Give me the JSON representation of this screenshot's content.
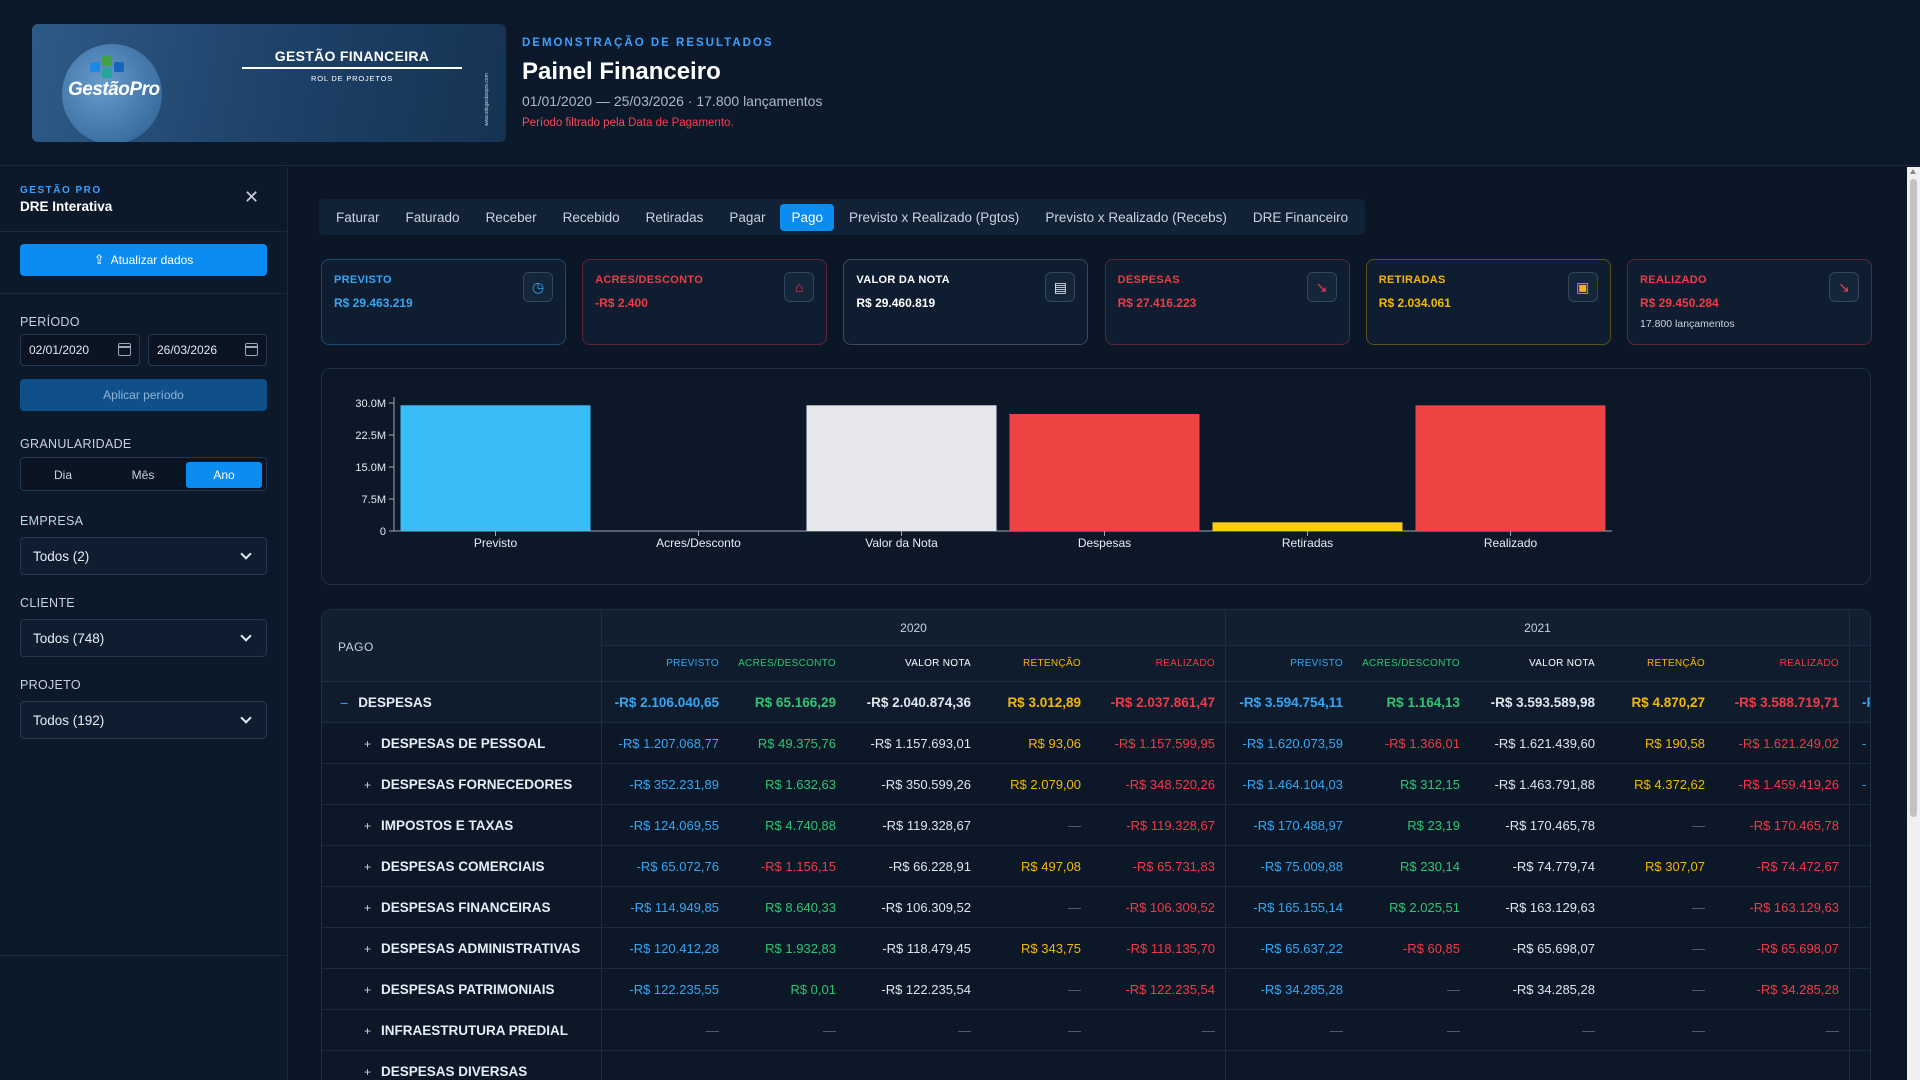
{
  "header": {
    "banner_logo": "GestãoPro",
    "banner_title": "GESTÃO FINANCEIRA",
    "banner_sub": "ROL DE PROJETOS",
    "banner_side": "www.sitegestaopro.com",
    "kicker": "DEMONSTRAÇÃO DE RESULTADOS",
    "title": "Painel Financeiro",
    "range": "01/01/2020 — 25/03/2026 · 17.800 lançamentos",
    "note_prefix": "Período filtrado pela ",
    "note_emph": "Data de Pagamento",
    "note_suffix": "."
  },
  "sidebar": {
    "kicker": "GESTÃO PRO",
    "title": "DRE Interativa",
    "close": "✕",
    "update_label": "Atualizar dados",
    "period_label": "PERÍODO",
    "date_from": "02/01/2020",
    "date_to": "26/03/2026",
    "apply_label": "Aplicar período",
    "gran_label": "GRANULARIDADE",
    "gran": [
      "Dia",
      "Mês",
      "Ano"
    ],
    "gran_selected": "Ano",
    "empresa_label": "EMPRESA",
    "empresa_value": "Todos (2)",
    "cliente_label": "CLIENTE",
    "cliente_value": "Todos (748)",
    "projeto_label": "PROJETO",
    "projeto_value": "Todos (192)"
  },
  "tabs": [
    "Faturar",
    "Faturado",
    "Receber",
    "Recebido",
    "Retiradas",
    "Pagar",
    "Pago",
    "Previsto x Realizado (Pgtos)",
    "Previsto x Realizado (Recebs)",
    "DRE Financeiro"
  ],
  "active_tab": "Pago",
  "cards": [
    {
      "label": "PREVISTO",
      "value": "R$ 29.463.219",
      "color": "#33a7f5",
      "icon": "calendar-clock-icon",
      "glyph": "◷"
    },
    {
      "label": "ACRES/DESCONTO",
      "value": "-R$ 2.400",
      "color": "#ee3b47",
      "icon": "tag-icon",
      "glyph": "⌂"
    },
    {
      "label": "VALOR DA NOTA",
      "value": "R$ 29.460.819",
      "color": "#ffffff",
      "icon": "document-icon",
      "glyph": "▤"
    },
    {
      "label": "DESPESAS",
      "value": "R$ 27.416.223",
      "color": "#ee3b47",
      "icon": "trend-down-icon",
      "glyph": "↘"
    },
    {
      "label": "RETIRADAS",
      "value": "R$ 2.034.061",
      "color": "#f5b800",
      "icon": "wallet-icon",
      "glyph": "▣"
    },
    {
      "label": "REALIZADO",
      "value": "R$ 29.450.284",
      "color": "#ee3b47",
      "icon": "trend-down-icon",
      "glyph": "↘",
      "extra": "17.800 lançamentos"
    }
  ],
  "chart_data": {
    "type": "bar",
    "categories": [
      "Previsto",
      "Acres/Desconto",
      "Valor da Nota",
      "Despesas",
      "Retiradas",
      "Realizado"
    ],
    "values": [
      29463219,
      -2400,
      29460819,
      27416223,
      2034061,
      29450284
    ],
    "colors": [
      "#38bdf8",
      "#64748b",
      "#e5e7eb",
      "#ef4444",
      "#facc15",
      "#ef4444"
    ],
    "yticks": [
      "30.0M",
      "22.5M",
      "15.0M",
      "7.5M",
      "0"
    ],
    "ylim": [
      0,
      30000000
    ],
    "grid": false
  },
  "table": {
    "corner": "PAGO",
    "years": [
      "2020",
      "2021"
    ],
    "columns": [
      {
        "label": "PREVISTO",
        "color": "#33a7f5"
      },
      {
        "label": "ACRES/DESCONTO",
        "color": "#2ec472"
      },
      {
        "label": "VALOR NOTA",
        "color": "#ffffff"
      },
      {
        "label": "RETENÇÃO",
        "color": "#f5b800"
      },
      {
        "label": "REALIZADO",
        "color": "#ee3b47"
      }
    ],
    "rows": [
      {
        "name": "DESPESAS",
        "toggle": "−",
        "top": true,
        "cells": [
          "-R$ 2.106.040,65",
          "R$ 65.166,29",
          "-R$ 2.040.874,36",
          "R$ 3.012,89",
          "-R$ 2.037.861,47",
          "-R$ 3.594.754,11",
          "R$ 1.164,13",
          "-R$ 3.593.589,98",
          "R$ 4.870,27",
          "-R$ 3.588.719,71",
          "-R"
        ]
      },
      {
        "name": "DESPESAS DE PESSOAL",
        "toggle": "+",
        "cells": [
          "-R$ 1.207.068,77",
          "R$ 49.375,76",
          "-R$ 1.157.693,01",
          "R$ 93,06",
          "-R$ 1.157.599,95",
          "-R$ 1.620.073,59",
          "-R$ 1.366,01",
          "-R$ 1.621.439,60",
          "R$ 190,58",
          "-R$ 1.621.249,02",
          "-"
        ]
      },
      {
        "name": "DESPESAS FORNECEDORES",
        "toggle": "+",
        "cells": [
          "-R$ 352.231,89",
          "R$ 1.632,63",
          "-R$ 350.599,26",
          "R$ 2.079,00",
          "-R$ 348.520,26",
          "-R$ 1.464.104,03",
          "R$ 312,15",
          "-R$ 1.463.791,88",
          "R$ 4.372,62",
          "-R$ 1.459.419,26",
          "-"
        ]
      },
      {
        "name": "IMPOSTOS E TAXAS",
        "toggle": "+",
        "cells": [
          "-R$ 124.069,55",
          "R$ 4.740,88",
          "-R$ 119.328,67",
          "—",
          "-R$ 119.328,67",
          "-R$ 170.488,97",
          "R$ 23,19",
          "-R$ 170.465,78",
          "—",
          "-R$ 170.465,78",
          ""
        ]
      },
      {
        "name": "DESPESAS COMERCIAIS",
        "toggle": "+",
        "cells": [
          "-R$ 65.072,76",
          "-R$ 1.156,15",
          "-R$ 66.228,91",
          "R$ 497,08",
          "-R$ 65.731,83",
          "-R$ 75.009,88",
          "R$ 230,14",
          "-R$ 74.779,74",
          "R$ 307,07",
          "-R$ 74.472,67",
          ""
        ]
      },
      {
        "name": "DESPESAS FINANCEIRAS",
        "toggle": "+",
        "cells": [
          "-R$ 114.949,85",
          "R$ 8.640,33",
          "-R$ 106.309,52",
          "—",
          "-R$ 106.309,52",
          "-R$ 165.155,14",
          "R$ 2.025,51",
          "-R$ 163.129,63",
          "—",
          "-R$ 163.129,63",
          ""
        ]
      },
      {
        "name": "DESPESAS ADMINISTRATIVAS",
        "toggle": "+",
        "cells": [
          "-R$ 120.412,28",
          "R$ 1.932,83",
          "-R$ 118.479,45",
          "R$ 343,75",
          "-R$ 118.135,70",
          "-R$ 65.637,22",
          "-R$ 60,85",
          "-R$ 65.698,07",
          "—",
          "-R$ 65.698,07",
          ""
        ]
      },
      {
        "name": "DESPESAS PATRIMONIAIS",
        "toggle": "+",
        "cells": [
          "-R$ 122.235,55",
          "R$ 0,01",
          "-R$ 122.235,54",
          "—",
          "-R$ 122.235,54",
          "-R$ 34.285,28",
          "—",
          "-R$ 34.285,28",
          "—",
          "-R$ 34.285,28",
          ""
        ]
      },
      {
        "name": "INFRAESTRUTURA PREDIAL",
        "toggle": "+",
        "cells": [
          "—",
          "—",
          "—",
          "—",
          "—",
          "—",
          "—",
          "—",
          "—",
          "—",
          ""
        ]
      },
      {
        "name": "DESPESAS DIVERSAS",
        "toggle": "+",
        "cells": [
          "",
          "",
          "",
          "",
          "",
          "",
          "",
          "",
          "",
          "",
          ""
        ]
      }
    ]
  }
}
